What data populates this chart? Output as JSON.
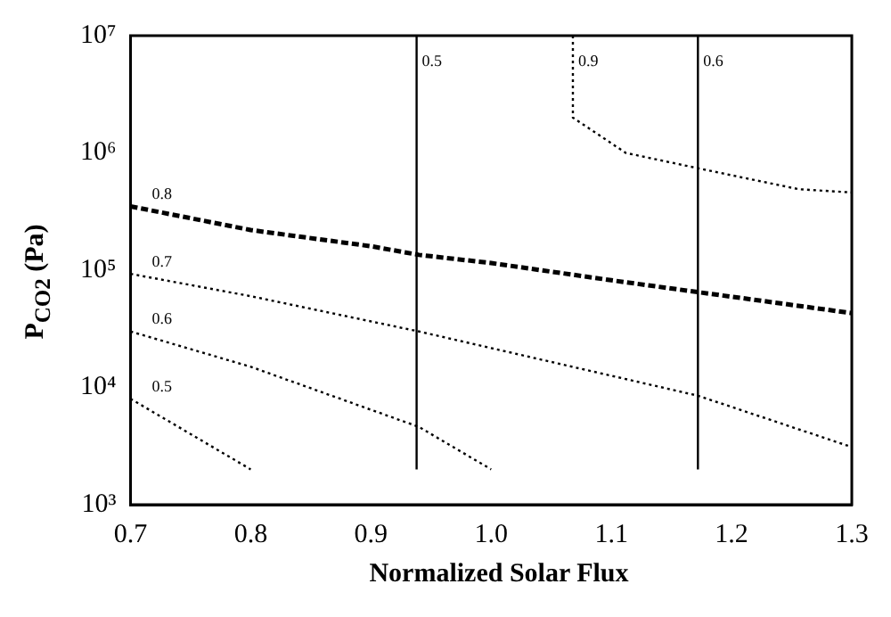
{
  "chart_data": {
    "type": "line",
    "xlabel": "Normalized Solar Flux",
    "ylabel": "P$_{CO2}$ (Pa)",
    "log": "y",
    "grid": false,
    "legend": false,
    "marker": "none",
    "xlim": [
      0.7,
      1.3
    ],
    "xticks": [
      {
        "value": 0.7,
        "label": "0.7"
      },
      {
        "value": 0.8,
        "label": "0.8"
      },
      {
        "value": 0.9,
        "label": "0.9"
      },
      {
        "value": 1.0,
        "label": "1.0"
      },
      {
        "value": 1.1,
        "label": "1.1"
      },
      {
        "value": 1.2,
        "label": "1.2"
      },
      {
        "value": 1.3,
        "label": "1.3"
      }
    ],
    "ylim": [
      1000,
      10000000
    ],
    "yticks": [
      {
        "value": 1000,
        "label": "10³"
      },
      {
        "value": 10000,
        "label": "10⁴"
      },
      {
        "value": 100000,
        "label": "10⁵"
      },
      {
        "value": 1000000,
        "label": "10⁶"
      },
      {
        "value": 10000000,
        "label": "10⁷"
      }
    ],
    "series": [
      {
        "name": "0.8",
        "color": "#000000",
        "line_style": "dashed",
        "x": [
          0.7,
          0.8,
          0.9,
          0.94,
          1.0,
          1.1,
          1.172,
          1.3
        ],
        "values": [
          350000,
          220000,
          160000,
          135000,
          115000,
          82000,
          65000,
          43000
        ]
      },
      {
        "name": "0.7",
        "color": "#000000",
        "line_style": "dotted",
        "x": [
          0.7,
          0.8,
          0.94,
          1.172,
          1.3
        ],
        "values": [
          93000,
          60000,
          30000,
          8500,
          3100
        ]
      },
      {
        "name": "0.6",
        "color": "#000000",
        "line_style": "dotted",
        "x": [
          0.7,
          0.8,
          0.94,
          1.0
        ],
        "values": [
          30000,
          15000,
          4600,
          2000
        ]
      },
      {
        "name": "0.5",
        "color": "#000000",
        "line_style": "dotted",
        "x": [
          0.7,
          0.8
        ],
        "values": [
          8000,
          2000
        ]
      },
      {
        "name": "0.9",
        "color": "#000000",
        "line_style": "dotted",
        "x": [
          1.068,
          1.068,
          1.112,
          1.172,
          1.256,
          1.3
        ],
        "values": [
          10000000,
          2000000,
          1000000,
          740000,
          490000,
          460000
        ]
      },
      {
        "name": "0.5",
        "color": "#000000",
        "line_style": "solid",
        "x": [
          0.938,
          0.938
        ],
        "values": [
          2000,
          10000000
        ]
      },
      {
        "name": "0.6",
        "color": "#000000",
        "line_style": "solid",
        "x": [
          1.172,
          1.172
        ],
        "values": [
          2000,
          10000000
        ]
      }
    ]
  }
}
